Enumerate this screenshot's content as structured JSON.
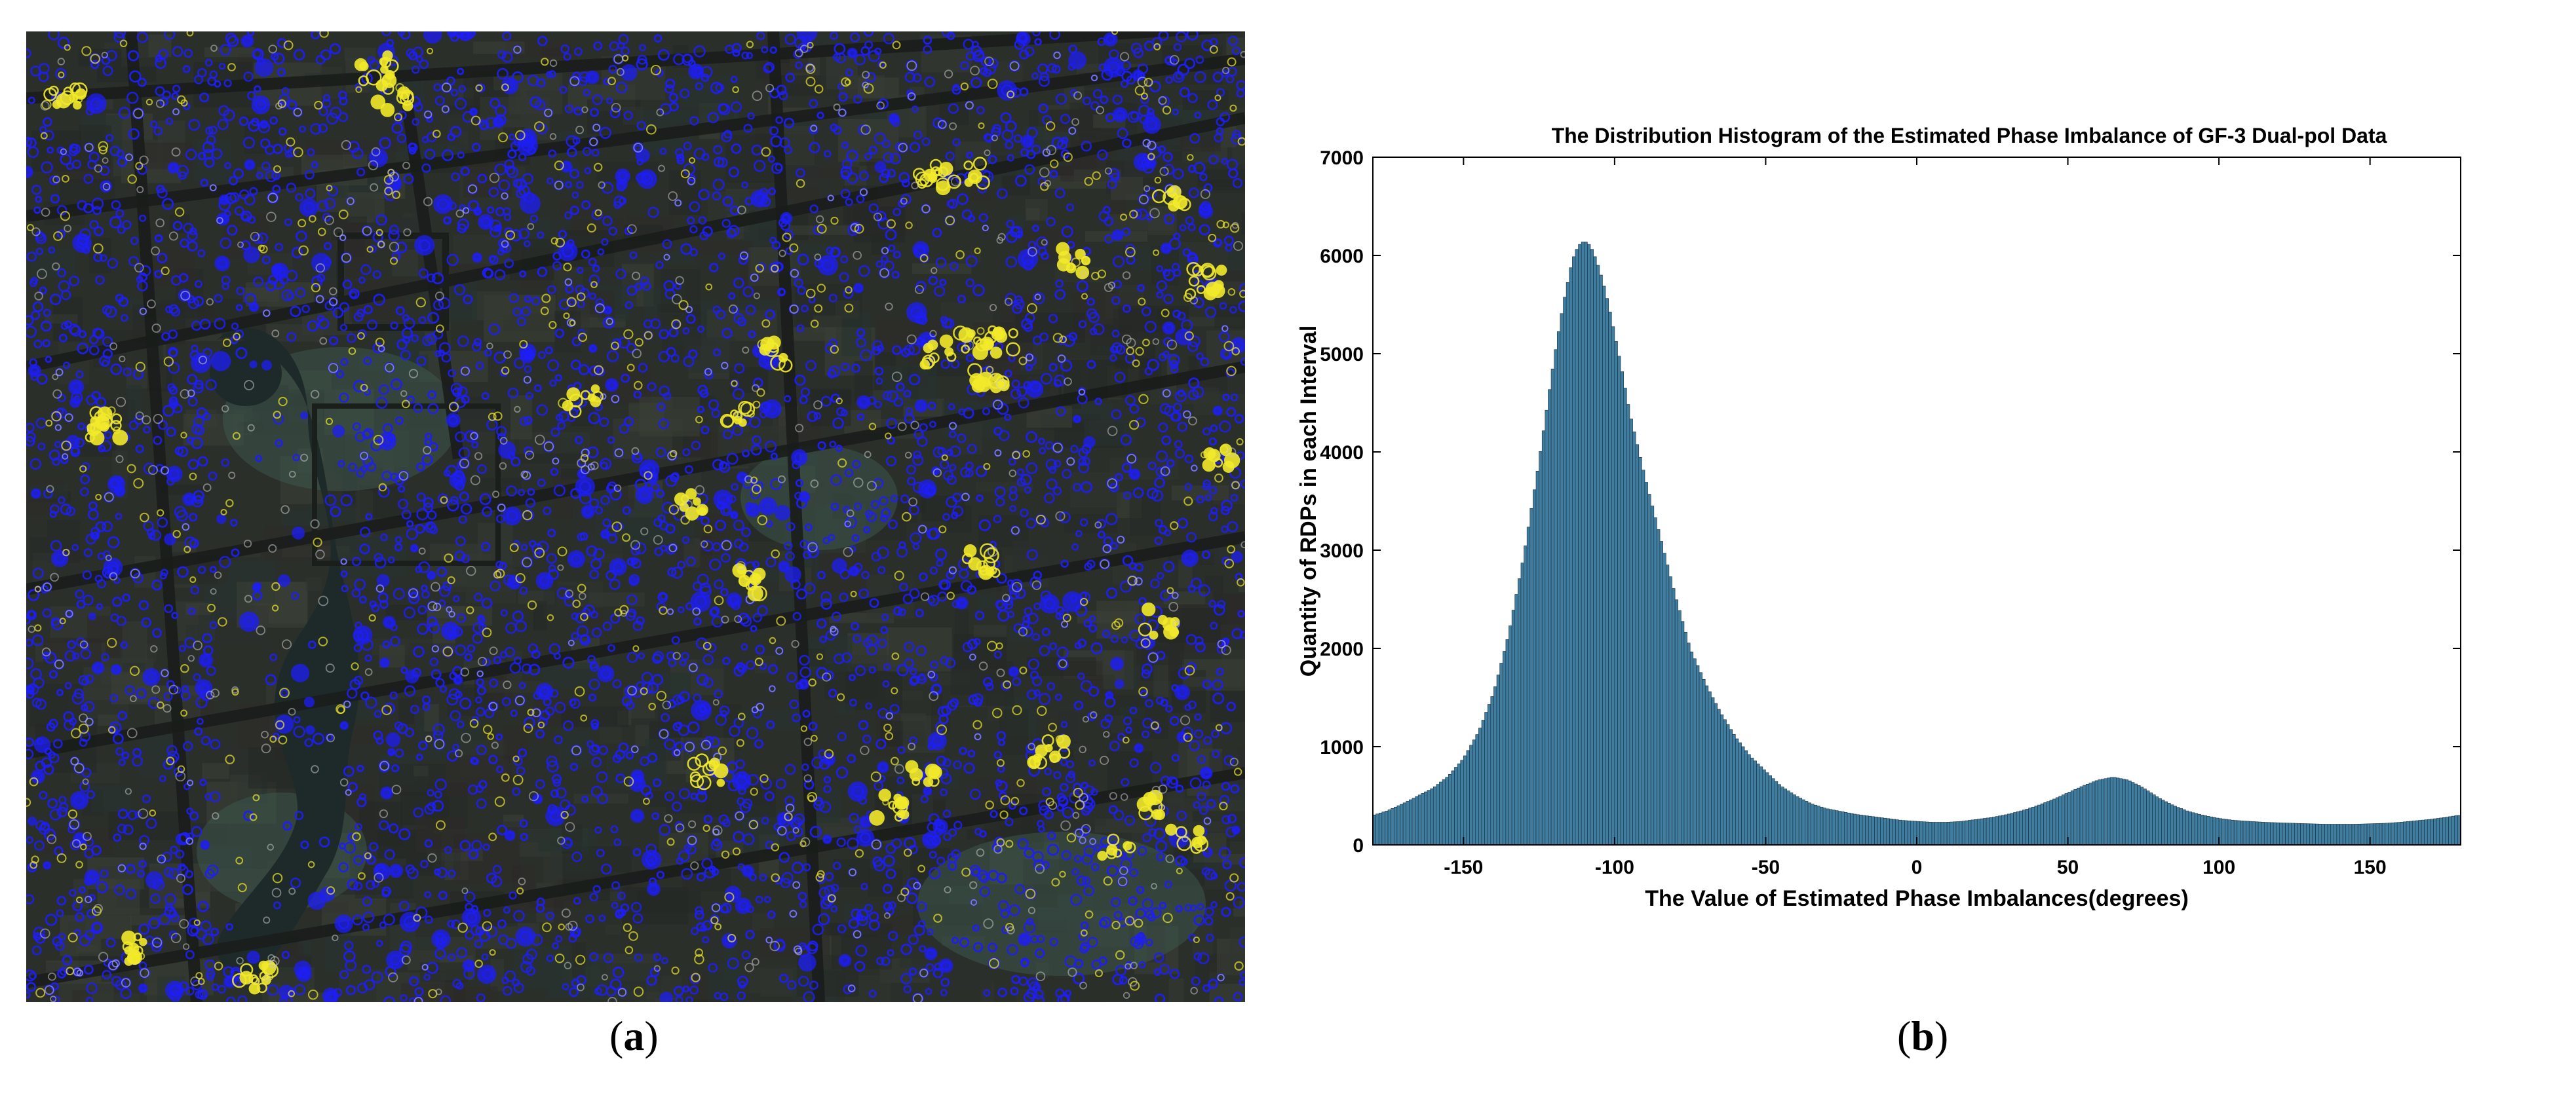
{
  "panel_a": {
    "caption_open": "(",
    "caption_letter": "a",
    "caption_close": ")",
    "colors": {
      "background": "#2b2f2a",
      "blue_markers": "#1e1ef5",
      "yellow_markers": "#f2ea2a",
      "water": "#1e2a2a",
      "roads": "#1a1d1b"
    }
  },
  "panel_b": {
    "caption_open": "(",
    "caption_letter": "b",
    "caption_close": ")"
  },
  "chart_data": {
    "type": "bar",
    "title": "The Distribution Histogram of the Estimated Phase Imbalance of GF-3 Dual-pol Data",
    "xlabel": "The Value of Estimated Phase Imbalances(degrees)",
    "ylabel": "Quantity of RDPs in each Interval",
    "xlim": [
      -180,
      180
    ],
    "ylim": [
      0,
      7000
    ],
    "xticks": [
      -150,
      -100,
      -50,
      0,
      50,
      100,
      150
    ],
    "yticks": [
      0,
      1000,
      2000,
      3000,
      4000,
      5000,
      6000,
      7000
    ],
    "bin_width": 1,
    "bar_color": "#3f7ea1",
    "edge_color": "#1c2b35",
    "profile_x": [
      -180,
      -175,
      -170,
      -165,
      -160,
      -155,
      -150,
      -145,
      -140,
      -135,
      -130,
      -125,
      -120,
      -117,
      -114,
      -112,
      -110,
      -108,
      -106,
      -104,
      -102,
      -100,
      -98,
      -95,
      -90,
      -85,
      -80,
      -75,
      -70,
      -65,
      -60,
      -55,
      -50,
      -45,
      -40,
      -35,
      -30,
      -25,
      -20,
      -15,
      -10,
      -5,
      0,
      5,
      10,
      15,
      20,
      25,
      30,
      35,
      40,
      45,
      50,
      55,
      60,
      65,
      70,
      75,
      80,
      85,
      90,
      95,
      100,
      105,
      110,
      115,
      120,
      125,
      130,
      135,
      140,
      145,
      150,
      155,
      160,
      165,
      170,
      175,
      179
    ],
    "profile_y": [
      300,
      350,
      420,
      500,
      580,
      700,
      880,
      1150,
      1550,
      2150,
      2950,
      3900,
      4950,
      5500,
      5950,
      6100,
      6150,
      6100,
      5950,
      5750,
      5500,
      5200,
      4900,
      4400,
      3750,
      3150,
      2550,
      2000,
      1650,
      1350,
      1100,
      900,
      750,
      600,
      500,
      420,
      370,
      340,
      310,
      290,
      270,
      250,
      240,
      230,
      230,
      240,
      260,
      280,
      310,
      350,
      400,
      460,
      530,
      600,
      660,
      690,
      660,
      580,
      480,
      400,
      340,
      300,
      270,
      250,
      240,
      230,
      225,
      220,
      215,
      210,
      210,
      210,
      215,
      220,
      230,
      245,
      260,
      280,
      300
    ]
  }
}
